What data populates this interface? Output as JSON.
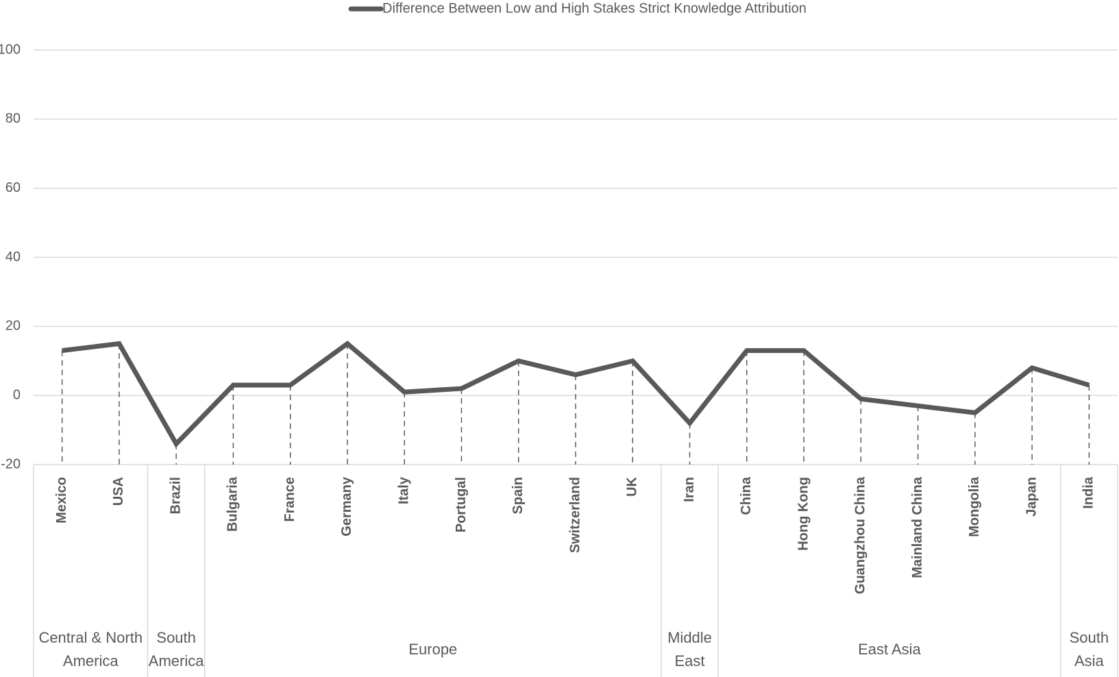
{
  "chart_data": {
    "type": "line",
    "categories": [
      "Mexico",
      "USA",
      "Brazil",
      "Bulgaria",
      "France",
      "Germany",
      "Italy",
      "Portugal",
      "Spain",
      "Switzerland",
      "UK",
      "Iran",
      "China",
      "Hong Kong",
      "Guangzhou China",
      "Mainland China",
      "Mongolia",
      "Japan",
      "India"
    ],
    "category_groups": [
      "Central & North America",
      "Central & North America",
      "South America",
      "Europe",
      "Europe",
      "Europe",
      "Europe",
      "Europe",
      "Europe",
      "Europe",
      "Europe",
      "Middle East",
      "East Asia",
      "East Asia",
      "East Asia",
      "East Asia",
      "East Asia",
      "East Asia",
      "South Asia"
    ],
    "series": [
      {
        "name": "Difference Between Low and High Stakes Strict Knowledge Attribution",
        "color": "#595959",
        "values": [
          13,
          15,
          -14,
          3,
          3,
          15,
          1,
          2,
          10,
          6,
          10,
          -8,
          13,
          13,
          -1,
          -3,
          -5,
          8,
          3
        ]
      }
    ],
    "ylim": [
      -20,
      100
    ],
    "yticks": [
      -20,
      0,
      20,
      40,
      60,
      80,
      100
    ],
    "grid": true,
    "drop_lines": true,
    "legend": "top"
  }
}
